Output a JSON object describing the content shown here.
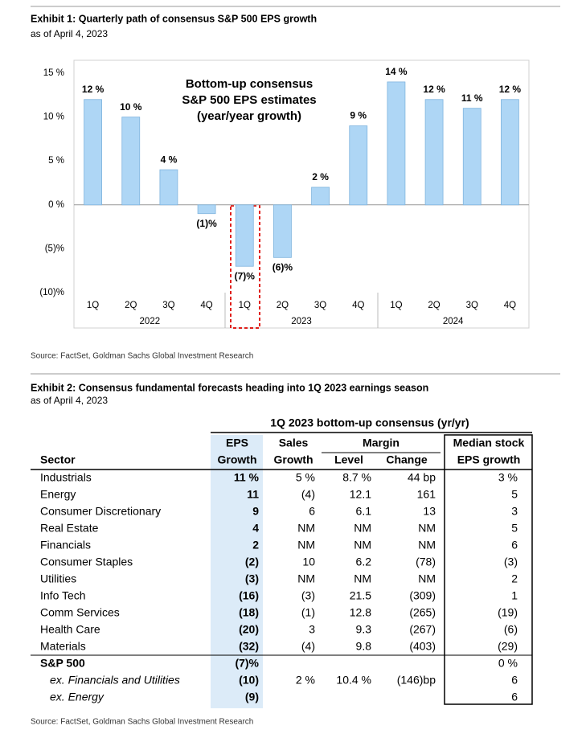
{
  "exhibit1": {
    "title": "Exhibit 1: Quarterly path of consensus S&P 500 EPS growth",
    "subtitle": "as of April 4, 2023",
    "source": "Source: FactSet, Goldman Sachs Global Investment Research"
  },
  "chart_data": {
    "type": "bar",
    "annotation": [
      "Bottom-up consensus",
      "S&P 500 EPS estimates",
      "(year/year growth)"
    ],
    "categories": [
      "1Q",
      "2Q",
      "3Q",
      "4Q",
      "1Q",
      "2Q",
      "3Q",
      "4Q",
      "1Q",
      "2Q",
      "3Q",
      "4Q"
    ],
    "groups": [
      "2022",
      "2023",
      "2024"
    ],
    "values": [
      12,
      10,
      4,
      -1,
      -7,
      -6,
      2,
      9,
      14,
      12,
      11,
      12
    ],
    "value_labels": [
      "12 %",
      "10 %",
      "4 %",
      "(1)%",
      "(7)%",
      "(6)%",
      "2 %",
      "9 %",
      "14 %",
      "12 %",
      "11 %",
      "12 %"
    ],
    "color": "#aed6f5",
    "ylim": [
      -10,
      15
    ],
    "yticks": [
      {
        "value": -10,
        "label": "(10)%"
      },
      {
        "value": -5,
        "label": "(5)%"
      },
      {
        "value": 0,
        "label": "0 %"
      },
      {
        "value": 5,
        "label": "5 %"
      },
      {
        "value": 10,
        "label": "10 %"
      },
      {
        "value": 15,
        "label": "15 %"
      }
    ]
  },
  "exhibit2": {
    "title": "Exhibit 2: Consensus fundamental forecasts heading into 1Q 2023 earnings season",
    "subtitle": "as of April 4, 2023",
    "header_title": "1Q 2023 bottom-up consensus (yr/yr)",
    "headers": {
      "eps": [
        "EPS",
        "Growth"
      ],
      "sales": [
        "Sales",
        "Growth"
      ],
      "margin": "Margin",
      "level": "Level",
      "change": "Change",
      "median": [
        "Median stock",
        "EPS growth"
      ],
      "sector": "Sector"
    },
    "rows": [
      [
        "Industrials",
        "11 %",
        "5 %",
        "8.7 %",
        "44 bp",
        "3 %"
      ],
      [
        "Energy",
        "11",
        "(4)",
        "12.1",
        "161",
        "5"
      ],
      [
        "Consumer Discretionary",
        "9",
        "6",
        "6.1",
        "13",
        "3"
      ],
      [
        "Real Estate",
        "4",
        "NM",
        "NM",
        "NM",
        "5"
      ],
      [
        "Financials",
        "2",
        "NM",
        "NM",
        "NM",
        "6"
      ],
      [
        "Consumer Staples",
        "(2)",
        "10",
        "6.2",
        "(78)",
        "(3)"
      ],
      [
        "Utilities",
        "(3)",
        "NM",
        "NM",
        "NM",
        "2"
      ],
      [
        "Info Tech",
        "(16)",
        "(3)",
        "21.5",
        "(309)",
        "1"
      ],
      [
        "Comm Services",
        "(18)",
        "(1)",
        "12.8",
        "(265)",
        "(19)"
      ],
      [
        "Health Care",
        "(20)",
        "3",
        "9.3",
        "(267)",
        "(6)"
      ],
      [
        "Materials",
        "(32)",
        "(4)",
        "9.8",
        "(403)",
        "(29)"
      ],
      [
        "S&P 500",
        "(7)%",
        null,
        null,
        null,
        "0 %"
      ],
      [
        "ex. Financials and Utilities",
        "(10)",
        "2 %",
        "10.4 %",
        "(146)bp",
        "6"
      ],
      [
        "ex. Energy",
        "(9)",
        null,
        null,
        null,
        "6"
      ]
    ],
    "source": "Source: FactSet, Goldman Sachs Global Investment Research"
  }
}
